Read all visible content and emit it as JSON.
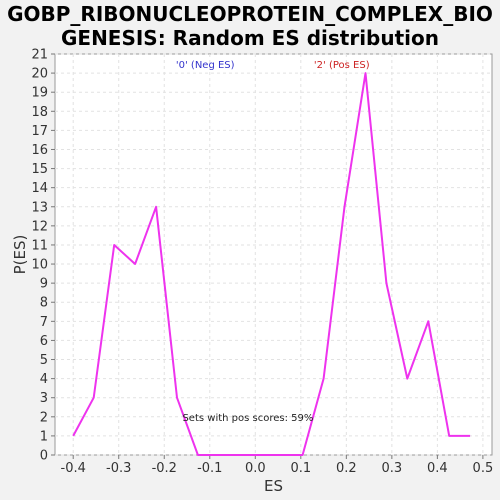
{
  "chart_data": {
    "type": "line",
    "title_lines": [
      "GOBP_RIBONUCLEOPROTEIN_COMPLEX_BIO",
      "GENESIS: Random ES distribution"
    ],
    "xlabel": "ES",
    "ylabel": "P(ES)",
    "xlim": [
      -0.44,
      0.52
    ],
    "ylim": [
      0,
      21
    ],
    "x_ticks": [
      -0.4,
      -0.3,
      -0.2,
      -0.1,
      0.0,
      0.1,
      0.2,
      0.3,
      0.4,
      0.5
    ],
    "x_tick_labels": [
      "-0.4",
      "-0.3",
      "-0.2",
      "-0.1",
      "0.0",
      "0.1",
      "0.2",
      "0.3",
      "0.4",
      "0.5"
    ],
    "y_ticks": [
      0,
      1,
      2,
      3,
      4,
      5,
      6,
      7,
      8,
      9,
      10,
      11,
      12,
      13,
      14,
      15,
      16,
      17,
      18,
      19,
      20,
      21
    ],
    "y_tick_labels": [
      "0",
      "1",
      "2",
      "3",
      "4",
      "5",
      "6",
      "7",
      "8",
      "9",
      "10",
      "11",
      "12",
      "13",
      "14",
      "15",
      "16",
      "17",
      "18",
      "19",
      "20",
      "21"
    ],
    "grid": true,
    "legend": [
      {
        "label": "'0' (Neg ES)",
        "color": "#3333cc"
      },
      {
        "label": "'2' (Pos ES)",
        "color": "#cc2222"
      }
    ],
    "annotation": "Sets with pos scores: 59%",
    "series": [
      {
        "color": "#ee33ee",
        "x": [
          -0.4,
          -0.355,
          -0.31,
          -0.264,
          -0.218,
          -0.172,
          -0.126,
          -0.08,
          -0.034,
          0.012,
          0.058,
          0.104,
          0.15,
          0.196,
          0.242,
          0.288,
          0.334,
          0.38,
          0.426,
          0.472
        ],
        "y": [
          1,
          3,
          11,
          10,
          13,
          3,
          0,
          0,
          0,
          0,
          0,
          0,
          4,
          13,
          20,
          9,
          4,
          7,
          1,
          1
        ]
      }
    ]
  }
}
